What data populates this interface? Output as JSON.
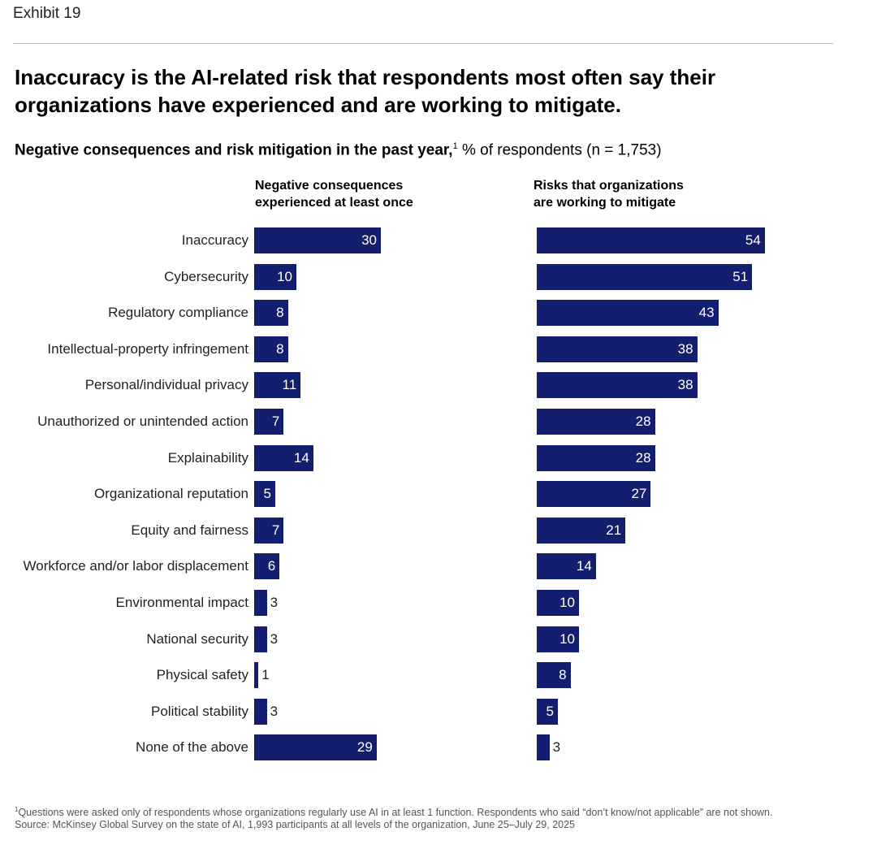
{
  "exhibit": "Exhibit 19",
  "title": "Inaccuracy is the AI-related risk that respondents most often say their organizations have experienced and are working to mitigate.",
  "subtitle_bold": "Negative consequences and risk mitigation in the past year,",
  "subtitle_sup": "1",
  "subtitle_rest": " % of respondents (n = 1,753)",
  "footnote_sup": "1",
  "footnote": "Questions were asked only of respondents whose organizations regularly use AI in at least 1 function. Respondents who said “don’t know/not applicable” are not shown.",
  "source": "Source: McKinsey Global Survey on the state of AI, 1,993 participants at all levels of the organization, June 25–July 29, 2025",
  "colors": {
    "bar": "#141e6e"
  },
  "chart_data": {
    "type": "bar",
    "orientation": "horizontal",
    "categories": [
      "Inaccuracy",
      "Cybersecurity",
      "Regulatory compliance",
      "Intellectual-property infringement",
      "Personal/individual privacy",
      "Unauthorized or unintended action",
      "Explainability",
      "Organizational reputation",
      "Equity and fairness",
      "Workforce and/or labor displacement",
      "Environmental impact",
      "National security",
      "Physical safety",
      "Political stability",
      "None of the above"
    ],
    "series": [
      {
        "name": "Negative consequences experienced at least once",
        "values": [
          30,
          10,
          8,
          8,
          11,
          7,
          14,
          5,
          7,
          6,
          3,
          3,
          1,
          3,
          29
        ]
      },
      {
        "name": "Risks that organizations are working to mitigate",
        "values": [
          54,
          51,
          43,
          38,
          38,
          28,
          28,
          27,
          21,
          14,
          10,
          10,
          8,
          5,
          3
        ]
      }
    ],
    "unit": "% of respondents",
    "grid": false
  }
}
